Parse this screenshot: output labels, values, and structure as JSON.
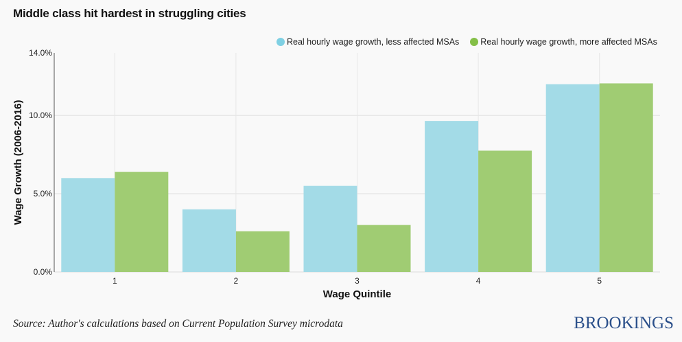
{
  "title": "Middle class hit hardest in struggling cities",
  "source": "Source: Author's calculations based on Current Population Survey microdata",
  "brand": "BROOKINGS",
  "chart_data": {
    "type": "bar",
    "title": "Middle class hit hardest in struggling cities",
    "xlabel": "Wage Quintile",
    "ylabel": "Wage Growth (2006-2016)",
    "categories": [
      "1",
      "2",
      "3",
      "4",
      "5"
    ],
    "series": [
      {
        "name": "Real hourly wage growth, less affected MSAs",
        "color": "#a3dbe7",
        "legend_color": "#7fd0e3",
        "values": [
          6.0,
          4.0,
          5.5,
          9.65,
          12.0
        ]
      },
      {
        "name": "Real hourly wage growth, more affected MSAs",
        "color": "#a0cc73",
        "legend_color": "#84bf47",
        "values": [
          6.4,
          2.6,
          3.0,
          7.75,
          12.05
        ]
      }
    ],
    "yticks": [
      0,
      5,
      10,
      14
    ],
    "ytick_labels": [
      "0.0%",
      "5.0%",
      "10.0%",
      "14.0%"
    ],
    "ylim": [
      0,
      14
    ],
    "grid": true,
    "legend_position": "top-right"
  }
}
